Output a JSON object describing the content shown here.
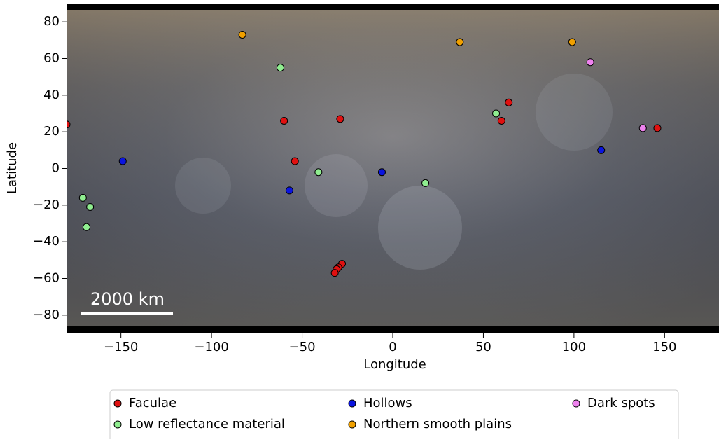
{
  "chart_data": {
    "type": "scatter",
    "x_label": "Longitude",
    "y_label": "Latitude",
    "xlim": [
      -180,
      180
    ],
    "ylim": [
      -90,
      90
    ],
    "xticks": [
      {
        "value": -150,
        "label": "−150"
      },
      {
        "value": -100,
        "label": "−100"
      },
      {
        "value": -50,
        "label": "−50"
      },
      0,
      50,
      100,
      150
    ],
    "yticks": [
      {
        "value": -80,
        "label": "−80"
      },
      {
        "value": -60,
        "label": "−60"
      },
      {
        "value": -40,
        "label": "−40"
      },
      {
        "value": -20,
        "label": "−20"
      },
      0,
      20,
      40,
      60,
      80
    ],
    "scale_bar_label": "2000 km",
    "legend": "below",
    "legend_columns": 3,
    "series": [
      {
        "name": "Faculae",
        "color": "#e01010",
        "x": [
          -180,
          -60,
          -29,
          -54,
          64,
          60,
          146,
          -28,
          -30,
          -31,
          -32
        ],
        "values": [
          24,
          26,
          27,
          4,
          36,
          26,
          22,
          -52,
          -54,
          -55,
          -57
        ]
      },
      {
        "name": "Low reflectance material",
        "color": "#90ee90",
        "x": [
          -62,
          -41,
          18,
          57,
          -171,
          -167,
          -169
        ],
        "values": [
          55,
          -2,
          -8,
          30,
          -16,
          -21,
          -32
        ]
      },
      {
        "name": "Hollows",
        "color": "#0a14e0",
        "x": [
          -149,
          -57,
          -6,
          115
        ],
        "values": [
          4,
          -12,
          -2,
          10
        ]
      },
      {
        "name": "Northern smooth plains",
        "color": "#f0a000",
        "x": [
          -83,
          37,
          99
        ],
        "values": [
          73,
          69,
          69
        ]
      },
      {
        "name": "Dark spots",
        "color": "#ee82ee",
        "x": [
          109,
          138
        ],
        "values": [
          58,
          22
        ]
      }
    ]
  }
}
